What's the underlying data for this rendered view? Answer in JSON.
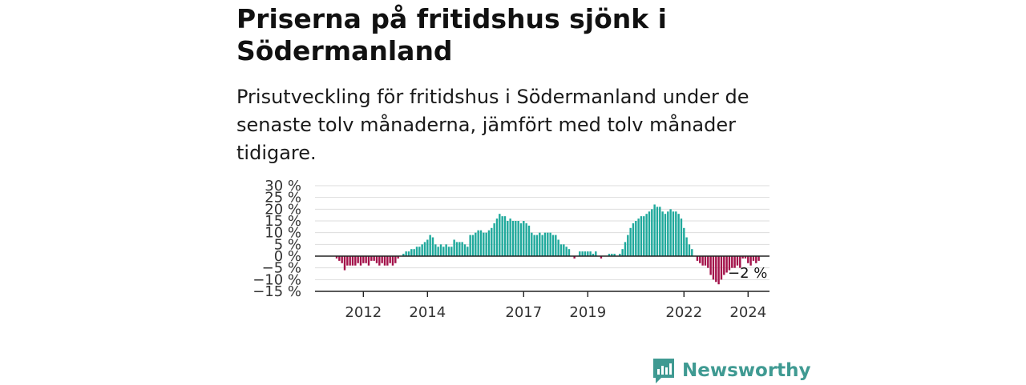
{
  "title": "Priserna på fritidshus sjönk i Södermanland",
  "subtitle": "Prisutveckling för fritidshus i Södermanland under de senaste tolv månaderna, jämfört med tolv månader tidigare.",
  "brand": {
    "name": "Newsworthy",
    "icon": "newsworthy-logo-icon"
  },
  "colors": {
    "positive": "#1fa99c",
    "negative": "#a3124a",
    "grid": "#dddddd",
    "axis": "#222222",
    "brand": "#3f9a92"
  },
  "chart_data": {
    "type": "bar",
    "title": "Priserna på fritidshus sjönk i Södermanland",
    "xlabel": "",
    "ylabel": "",
    "ylim": [
      -15,
      30
    ],
    "y_ticks": [
      30,
      25,
      20,
      15,
      10,
      5,
      0,
      -5,
      -10,
      -15
    ],
    "y_tick_labels": [
      "30 %",
      "25 %",
      "20 %",
      "15 %",
      "10 %",
      "5 %",
      "0 %",
      "−5 %",
      "−10 %",
      "−15 %"
    ],
    "x_tick_labels": [
      "2012",
      "2014",
      "2017",
      "2019",
      "2022",
      "2024"
    ],
    "x_tick_months": [
      10,
      34,
      70,
      94,
      130,
      154
    ],
    "grid": true,
    "last_value_label": "−2 %",
    "series": [
      {
        "values": [
          -1,
          -2,
          -3,
          -6,
          -4,
          -4,
          -4,
          -4,
          -3,
          -4,
          -3,
          -3,
          -4,
          -2,
          -2,
          -3,
          -4,
          -3,
          -4,
          -4,
          -3,
          -4,
          -3,
          -1,
          0,
          1,
          2,
          2,
          3,
          3,
          4,
          4,
          5,
          6,
          7,
          9,
          8,
          5,
          4,
          5,
          4,
          5,
          4,
          4,
          7,
          6,
          6,
          6,
          5,
          4,
          9,
          9,
          10,
          11,
          11,
          10,
          10,
          11,
          12,
          14,
          16,
          18,
          17,
          17,
          15,
          16,
          15,
          15,
          15,
          14,
          15,
          14,
          13,
          10,
          9,
          9,
          10,
          9,
          10,
          10,
          10,
          9,
          9,
          7,
          5,
          5,
          4,
          3,
          0,
          -1,
          0,
          2,
          2,
          2,
          2,
          2,
          1,
          2,
          0,
          -1,
          0,
          0,
          1,
          1,
          1,
          0,
          1,
          3,
          6,
          9,
          12,
          14,
          15,
          16,
          17,
          17,
          18,
          19,
          20,
          22,
          21,
          21,
          19,
          18,
          19,
          20,
          19,
          19,
          18,
          16,
          12,
          8,
          5,
          3,
          0,
          -2,
          -3,
          -4,
          -4,
          -5,
          -8,
          -10,
          -11,
          -12,
          -10,
          -8,
          -7,
          -6,
          -5,
          -5,
          -4,
          -5,
          -1,
          -1,
          -3,
          -4,
          -2,
          -3,
          -2
        ]
      }
    ]
  }
}
